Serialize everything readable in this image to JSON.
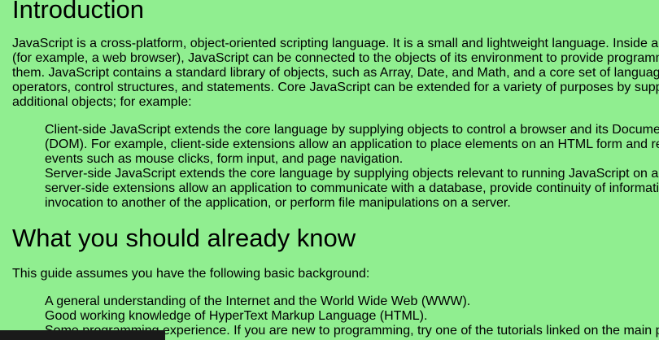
{
  "headings": {
    "introduction": "Introduction",
    "what_you_should_know": "What you should already know"
  },
  "intro_paragraph": [
    "JavaScript is a cross-platform, object-oriented scripting language. It is a small and lightweight language. Inside a",
    "(for example, a web browser), JavaScript can be connected to the objects of its environment to provide programm",
    "them. JavaScript contains a standard library of objects, such as Array, Date, and Math, and a core set of languag",
    "operators, control structures, and statements. Core JavaScript can be extended for a variety of purposes by supp",
    "additional objects; for example:"
  ],
  "intro_list": [
    "Client-side JavaScript extends the core language by supplying objects to control a browser and its Docume",
    "(DOM). For example, client-side extensions allow an application to place elements on an HTML form and re",
    "events such as mouse clicks, form input, and page navigation.",
    "Server-side JavaScript extends the core language by supplying objects relevant to running JavaScript on a",
    "server-side extensions allow an application to communicate with a database, provide continuity of informati",
    "invocation to another of the application, or perform file manipulations on a server."
  ],
  "guide_paragraph": "This guide assumes you have the following basic background:",
  "background_list": [
    "A general understanding of the Internet and the World Wide Web (WWW).",
    "Good working knowledge of HyperText Markup Language (HTML).",
    "Some programming experience. If you are new to programming, try one of the tutorials linked on the main p"
  ]
}
